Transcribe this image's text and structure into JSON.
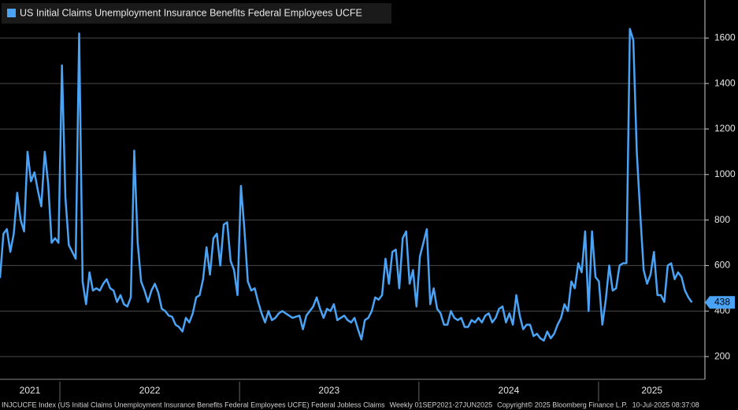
{
  "chart_data": {
    "type": "line",
    "series": [
      {
        "name": "US Initial Claims Unemployment Insurance Benefits Federal Employees UCFE",
        "color": "#4aa3f5",
        "values": [
          545,
          740,
          760,
          660,
          740,
          920,
          800,
          750,
          1100,
          970,
          1010,
          930,
          860,
          1100,
          960,
          700,
          720,
          700,
          1480,
          900,
          690,
          660,
          630,
          1620,
          530,
          430,
          570,
          490,
          500,
          490,
          520,
          540,
          500,
          490,
          440,
          470,
          430,
          420,
          460,
          1105,
          700,
          530,
          490,
          440,
          490,
          520,
          480,
          410,
          400,
          380,
          375,
          340,
          330,
          310,
          370,
          350,
          390,
          460,
          470,
          540,
          680,
          560,
          720,
          740,
          600,
          780,
          790,
          620,
          580,
          470,
          950,
          760,
          530,
          490,
          500,
          440,
          390,
          350,
          400,
          360,
          370,
          390,
          400,
          390,
          380,
          370,
          375,
          380,
          320,
          380,
          400,
          420,
          460,
          410,
          370,
          410,
          400,
          430,
          360,
          370,
          380,
          360,
          350,
          370,
          320,
          275,
          360,
          370,
          400,
          460,
          450,
          470,
          630,
          520,
          660,
          670,
          500,
          720,
          750,
          520,
          580,
          420,
          640,
          700,
          760,
          430,
          500,
          410,
          390,
          340,
          340,
          400,
          370,
          360,
          370,
          330,
          330,
          360,
          350,
          370,
          350,
          380,
          390,
          350,
          370,
          410,
          420,
          350,
          390,
          340,
          470,
          380,
          320,
          340,
          340,
          290,
          300,
          280,
          270,
          310,
          280,
          300,
          340,
          370,
          430,
          400,
          530,
          500,
          610,
          570,
          750,
          400,
          750,
          550,
          530,
          340,
          450,
          600,
          490,
          500,
          600,
          610,
          610,
          1640,
          1590,
          1100,
          830,
          580,
          520,
          560,
          660,
          470,
          470,
          440,
          600,
          610,
          540,
          570,
          550,
          490,
          460,
          438
        ]
      }
    ],
    "xlim": [
      0,
      204.8
    ],
    "xticks": [
      17.4,
      69.6,
      121.7,
      173.9
    ],
    "x_labels": [
      {
        "value": 8.7,
        "label": "2021"
      },
      {
        "value": 43.5,
        "label": "2022"
      },
      {
        "value": 95.6,
        "label": "2023"
      },
      {
        "value": 147.8,
        "label": "2024"
      },
      {
        "value": 189.4,
        "label": "2025"
      }
    ],
    "ylim": [
      100,
      1767
    ],
    "yticks": [
      200,
      400,
      600,
      800,
      1000,
      1200,
      1400,
      1600
    ],
    "grid": true,
    "footer": [
      "INJCUCFE Index (US Initial Claims Unemployment Insurance Benefits Federal Employees UCFE) Federal Jobless Claims",
      "Weekly 01SEP2021-27JUN2025",
      "Copyright© 2025 Bloomberg Finance L.P.",
      "10-Jul-2025 08:37:08"
    ]
  }
}
